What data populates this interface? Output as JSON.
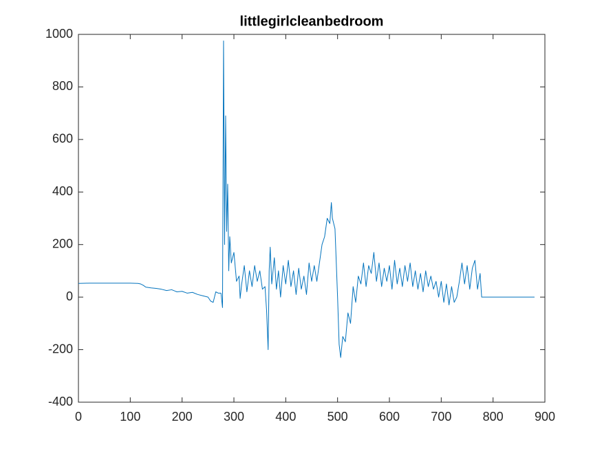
{
  "chart_data": {
    "type": "line",
    "title": "littlegirlcleanbedroom",
    "x": [
      0,
      20,
      40,
      60,
      80,
      100,
      115,
      120,
      125,
      130,
      140,
      150,
      160,
      170,
      180,
      190,
      200,
      210,
      220,
      230,
      240,
      250,
      255,
      260,
      265,
      270,
      275,
      278,
      280,
      282,
      284,
      286,
      288,
      290,
      292,
      295,
      300,
      305,
      310,
      312,
      315,
      320,
      325,
      330,
      335,
      340,
      345,
      350,
      355,
      360,
      363,
      366,
      368,
      370,
      373,
      378,
      382,
      386,
      390,
      395,
      400,
      405,
      410,
      415,
      420,
      425,
      430,
      435,
      440,
      445,
      450,
      455,
      460,
      465,
      470,
      475,
      480,
      485,
      488,
      490,
      495,
      500,
      503,
      506,
      510,
      515,
      520,
      525,
      530,
      535,
      540,
      545,
      550,
      555,
      560,
      565,
      570,
      575,
      580,
      585,
      590,
      595,
      600,
      605,
      610,
      615,
      620,
      625,
      630,
      635,
      640,
      645,
      650,
      655,
      660,
      665,
      670,
      675,
      680,
      685,
      690,
      695,
      700,
      705,
      710,
      715,
      720,
      725,
      730,
      735,
      740,
      745,
      750,
      755,
      760,
      765,
      770,
      775,
      778,
      780,
      880
    ],
    "series": [
      {
        "color": "#0072bd",
        "values": [
          52,
          53,
          53,
          53,
          53,
          53,
          52,
          50,
          45,
          38,
          35,
          33,
          30,
          25,
          28,
          20,
          22,
          15,
          18,
          10,
          5,
          0,
          -15,
          -20,
          20,
          15,
          15,
          -40,
          975,
          200,
          690,
          250,
          430,
          100,
          230,
          130,
          170,
          60,
          80,
          -5,
          50,
          120,
          20,
          100,
          40,
          120,
          60,
          100,
          30,
          40,
          -50,
          -200,
          100,
          190,
          50,
          150,
          30,
          100,
          0,
          120,
          50,
          140,
          40,
          100,
          10,
          110,
          30,
          80,
          10,
          130,
          60,
          120,
          60,
          130,
          200,
          230,
          300,
          280,
          360,
          300,
          260,
          0,
          -180,
          -230,
          -150,
          -170,
          -60,
          -100,
          40,
          -20,
          80,
          50,
          130,
          40,
          120,
          90,
          170,
          60,
          130,
          40,
          110,
          60,
          120,
          30,
          140,
          50,
          110,
          40,
          120,
          60,
          130,
          40,
          100,
          30,
          90,
          20,
          100,
          40,
          80,
          30,
          60,
          0,
          60,
          -20,
          50,
          -30,
          40,
          -20,
          0,
          60,
          130,
          50,
          120,
          30,
          110,
          140,
          30,
          90,
          0,
          0,
          0
        ]
      }
    ],
    "xlim": [
      0,
      900
    ],
    "xticks": [
      0,
      100,
      200,
      300,
      400,
      500,
      600,
      700,
      800,
      900
    ],
    "ylim": [
      -400,
      1000
    ],
    "yticks": [
      -400,
      -200,
      0,
      200,
      400,
      600,
      800,
      1000
    ]
  }
}
